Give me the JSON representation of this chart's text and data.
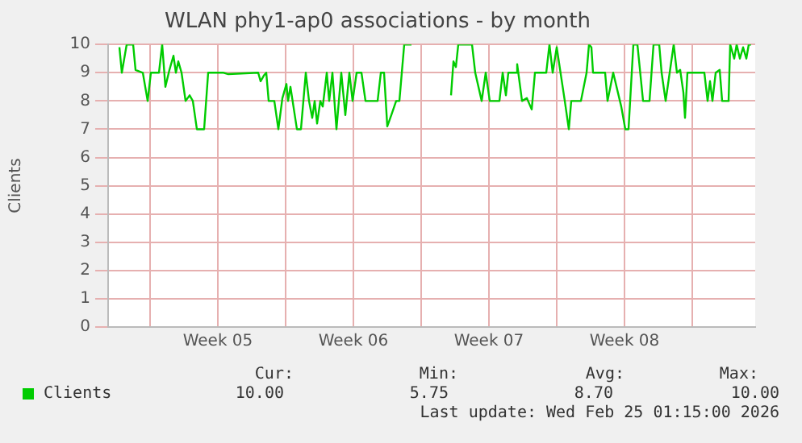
{
  "chart_data": {
    "type": "line",
    "title": "WLAN phy1-ap0 associations - by month",
    "ylabel": "Clients",
    "xlim": [
      "2026-01-23T20:00",
      "2026-02-26T06:00"
    ],
    "xticks": [
      {
        "value": "2026-01-26",
        "label": null
      },
      {
        "value": "2026-01-29T12:00",
        "label": "Week 05"
      },
      {
        "value": "2026-02-02",
        "label": null
      },
      {
        "value": "2026-02-05T12:00",
        "label": "Week 06"
      },
      {
        "value": "2026-02-09",
        "label": null
      },
      {
        "value": "2026-02-12T12:00",
        "label": "Week 07"
      },
      {
        "value": "2026-02-16",
        "label": null
      },
      {
        "value": "2026-02-19T12:00",
        "label": "Week 08"
      },
      {
        "value": "2026-02-23",
        "label": null
      }
    ],
    "ylim": [
      0,
      10
    ],
    "yticks": [
      0,
      1,
      2,
      3,
      4,
      5,
      6,
      7,
      8,
      9,
      10
    ],
    "grid": true,
    "legend": "bottom left",
    "marker": "none",
    "line_style": "solid",
    "x": [
      "2026-01-24T10:00",
      "2026-01-24T13:00",
      "2026-01-24T19:00",
      "2026-01-25T03:00",
      "2026-01-25T06:00",
      "2026-01-25T15:00",
      "2026-01-25T21:00",
      "2026-01-26T01:00",
      "2026-01-26T11:00",
      "2026-01-26T15:00",
      "2026-01-26T19:00",
      "2026-01-27T00:00",
      "2026-01-27T05:00",
      "2026-01-27T08:00",
      "2026-01-27T11:00",
      "2026-01-27T15:00",
      "2026-01-27T20:00",
      "2026-01-28T01:00",
      "2026-01-28T05:00",
      "2026-01-28T10:00",
      "2026-01-28T19:00",
      "2026-01-29T00:00",
      "2026-01-29T19:00",
      "2026-01-30T01:00",
      "2026-01-31T14:00",
      "2026-01-31T17:00",
      "2026-01-31T21:00",
      "2026-02-01T00:00",
      "2026-02-01T03:00",
      "2026-02-01T10:00",
      "2026-02-01T15:00",
      "2026-02-01T20:00",
      "2026-02-02T01:00",
      "2026-02-02T03:00",
      "2026-02-02T06:00",
      "2026-02-02T14:00",
      "2026-02-02T19:00",
      "2026-02-03T01:00",
      "2026-02-03T05:00",
      "2026-02-03T09:00",
      "2026-02-03T12:00",
      "2026-02-03T15:00",
      "2026-02-03T19:00",
      "2026-02-03T22:00",
      "2026-02-04T03:00",
      "2026-02-04T06:00",
      "2026-02-04T10:00",
      "2026-02-04T15:00",
      "2026-02-04T21:00",
      "2026-02-05T02:00",
      "2026-02-05T07:00",
      "2026-02-05T11:00",
      "2026-02-05T16:00",
      "2026-02-05T22:00",
      "2026-02-06T03:00",
      "2026-02-06T18:00",
      "2026-02-06T22:00",
      "2026-02-07T02:00",
      "2026-02-07T06:00",
      "2026-02-07T11:00",
      "2026-02-07T17:00",
      "2026-02-07T21:00",
      "2026-02-08T03:00",
      "2026-02-08T12:00",
      "2026-02-09T14:00",
      "2026-02-10T13:00",
      "2026-02-10T16:00",
      "2026-02-10T19:00",
      "2026-02-10T22:00",
      "2026-02-11T15:00",
      "2026-02-11T19:00",
      "2026-02-12T03:00",
      "2026-02-12T08:00",
      "2026-02-12T13:00",
      "2026-02-13T01:00",
      "2026-02-13T05:00",
      "2026-02-13T09:00",
      "2026-02-13T12:00",
      "2026-02-13T22:00",
      "2026-02-13T23:00",
      "2026-02-14T05:00",
      "2026-02-14T11:00",
      "2026-02-14T17:00",
      "2026-02-14T21:00",
      "2026-02-15T11:00",
      "2026-02-15T15:00",
      "2026-02-15T19:00",
      "2026-02-16T00:00",
      "2026-02-16T10:00",
      "2026-02-16T15:00",
      "2026-02-16T18:00",
      "2026-02-17T06:00",
      "2026-02-17T13:00",
      "2026-02-17T16:00",
      "2026-02-17T19:00",
      "2026-02-17T21:00",
      "2026-02-18T12:00",
      "2026-02-18T15:00",
      "2026-02-18T22:00",
      "2026-02-19T08:00",
      "2026-02-19T13:00",
      "2026-02-19T17:00",
      "2026-02-19T23:00",
      "2026-02-20T04:00",
      "2026-02-20T11:00",
      "2026-02-20T19:00",
      "2026-02-21T00:00",
      "2026-02-21T07:00",
      "2026-02-21T10:00",
      "2026-02-21T15:00",
      "2026-02-21T20:00",
      "2026-02-22T01:00",
      "2026-02-22T05:00",
      "2026-02-22T09:00",
      "2026-02-22T13:00",
      "2026-02-22T15:00",
      "2026-02-22T18:00",
      "2026-02-23T15:00",
      "2026-02-23T19:00",
      "2026-02-23T22:00",
      "2026-02-24T01:00",
      "2026-02-24T05:00",
      "2026-02-24T10:00",
      "2026-02-24T13:00",
      "2026-02-24T21:00",
      "2026-02-24T23:00",
      "2026-02-25T04:00",
      "2026-02-25T07:00",
      "2026-02-25T11:00",
      "2026-02-25T15:00",
      "2026-02-25T19:00",
      "2026-02-25T22:00",
      "2026-02-26T01:00"
    ],
    "series": [
      {
        "name": "Clients",
        "color": "#00cc00",
        "values": [
          9.9,
          9,
          10,
          10,
          9.1,
          9,
          8,
          9,
          9,
          10,
          8.5,
          9.1,
          9.6,
          9,
          9.4,
          9,
          8,
          8.2,
          8,
          7,
          7,
          9,
          9,
          8.95,
          9,
          8.7,
          8.9,
          9,
          8,
          8,
          7,
          8.1,
          8.6,
          8,
          8.5,
          7,
          7,
          9,
          8,
          7.4,
          8,
          7.2,
          8,
          7.8,
          9,
          8,
          9,
          7,
          9,
          7.5,
          9,
          8,
          9,
          9,
          8,
          8,
          9,
          9,
          7.1,
          7.5,
          8,
          8,
          10,
          10,
          null,
          8.2,
          9.4,
          9.2,
          10,
          10,
          9,
          8,
          9,
          8,
          8,
          9,
          8.2,
          9,
          9,
          9.3,
          8,
          8.1,
          7.7,
          9,
          9,
          10,
          9,
          9.9,
          8,
          7,
          8,
          8,
          9,
          10,
          9.9,
          9,
          9,
          8,
          9,
          7.8,
          7,
          7,
          10,
          10,
          8,
          8,
          10,
          10,
          9,
          8,
          9,
          10,
          9,
          9.1,
          8.3,
          7.4,
          9,
          9,
          8,
          8.7,
          8,
          9,
          9.1,
          8,
          8,
          10,
          9.5,
          10,
          9.5,
          9.9,
          9.5,
          10,
          10
        ]
      }
    ],
    "annotations": [
      "Cur:",
      "Min:",
      "Avg:",
      "Max:",
      "10.00",
      "5.75",
      "8.70",
      "10.00",
      "Last update: Wed Feb 25 01:15:00 2026"
    ]
  }
}
